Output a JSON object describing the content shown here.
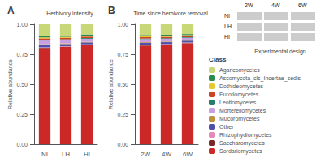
{
  "chart_data": [
    {
      "type": "bar",
      "stacked": true,
      "title": "Herbivory intensity",
      "annotations": [
        "A"
      ],
      "categories": [
        "NI",
        "LH",
        "HI"
      ],
      "ylabel": "Relative abundance",
      "ylim": [
        0,
        1.0
      ],
      "yticks": [
        {
          "value": 0,
          "label": "0.00"
        },
        0.25,
        {
          "value": 0.5,
          "label": "0.50"
        },
        0.75,
        {
          "value": 1.0,
          "label": "1.00"
        }
      ],
      "grid": false,
      "series": [
        {
          "name": "Agaricomycetes",
          "color": "#c8d878",
          "values": [
            0.1,
            0.095,
            0.085
          ]
        },
        {
          "name": "Ascomycota_cls_Incertae_sedis",
          "color": "#2d8a4e",
          "values": [
            0.01,
            0.01,
            0.01
          ]
        },
        {
          "name": "Dothideomycetes",
          "color": "#e8c830",
          "values": [
            0.008,
            0.008,
            0.008
          ]
        },
        {
          "name": "Eurotiomycetes",
          "color": "#cc4422",
          "values": [
            0.012,
            0.012,
            0.012
          ]
        },
        {
          "name": "Leotiomycetes",
          "color": "#2a7c6a",
          "values": [
            0.006,
            0.006,
            0.006
          ]
        },
        {
          "name": "Morterellomycetes",
          "color": "#c8a0e0",
          "values": [
            0.03,
            0.028,
            0.025
          ]
        },
        {
          "name": "Mucoromycetes",
          "color": "#c09040",
          "values": [
            0.006,
            0.006,
            0.005
          ]
        },
        {
          "name": "Other",
          "color": "#5050aa",
          "values": [
            0.02,
            0.018,
            0.016
          ]
        },
        {
          "name": "Rhizophydiomycetes",
          "color": "#e888b8",
          "values": [
            0.004,
            0.004,
            0.003
          ]
        },
        {
          "name": "Saccharomycetes",
          "color": "#7a2828",
          "values": [
            0.004,
            0.003,
            0.003
          ]
        },
        {
          "name": "Sordariomycetes",
          "color": "#cc2828",
          "values": [
            0.8,
            0.81,
            0.827
          ]
        }
      ]
    },
    {
      "type": "bar",
      "stacked": true,
      "title": "Time since herbivore removal",
      "annotations": [
        "B",
        "Class",
        "Experimental design"
      ],
      "categories": [
        "2W",
        "4W",
        "6W"
      ],
      "ylabel": "Relative abundance",
      "ylim": [
        0,
        1.0
      ],
      "yticks": [
        {
          "value": 0,
          "label": "0.00"
        },
        0.25,
        {
          "value": 0.5,
          "label": "0.50"
        },
        0.75,
        {
          "value": 1.0,
          "label": "1.00"
        }
      ],
      "grid": false,
      "legend": "right",
      "series": [
        {
          "name": "Agaricomycetes",
          "color": "#c8d878",
          "values": [
            0.09,
            0.088,
            0.082
          ]
        },
        {
          "name": "Ascomycota_cls_Incertae_sedis",
          "color": "#2d8a4e",
          "values": [
            0.01,
            0.01,
            0.009
          ]
        },
        {
          "name": "Dothideomycetes",
          "color": "#e8c830",
          "values": [
            0.008,
            0.007,
            0.007
          ]
        },
        {
          "name": "Eurotiomycetes",
          "color": "#cc4422",
          "values": [
            0.011,
            0.011,
            0.01
          ]
        },
        {
          "name": "Leotiomycetes",
          "color": "#2a7c6a",
          "values": [
            0.005,
            0.005,
            0.005
          ]
        },
        {
          "name": "Morterellomycetes",
          "color": "#c8a0e0",
          "values": [
            0.025,
            0.023,
            0.02
          ]
        },
        {
          "name": "Mucoromycetes",
          "color": "#c09040",
          "values": [
            0.005,
            0.005,
            0.004
          ]
        },
        {
          "name": "Other",
          "color": "#5050aa",
          "values": [
            0.018,
            0.016,
            0.015
          ]
        },
        {
          "name": "Rhizophydiomycetes",
          "color": "#e888b8",
          "values": [
            0.003,
            0.003,
            0.003
          ]
        },
        {
          "name": "Saccharomycetes",
          "color": "#7a2828",
          "values": [
            0.004,
            0.003,
            0.003
          ]
        },
        {
          "name": "Sordariomycetes",
          "color": "#cc2828",
          "values": [
            0.821,
            0.829,
            0.842
          ]
        }
      ]
    }
  ]
}
